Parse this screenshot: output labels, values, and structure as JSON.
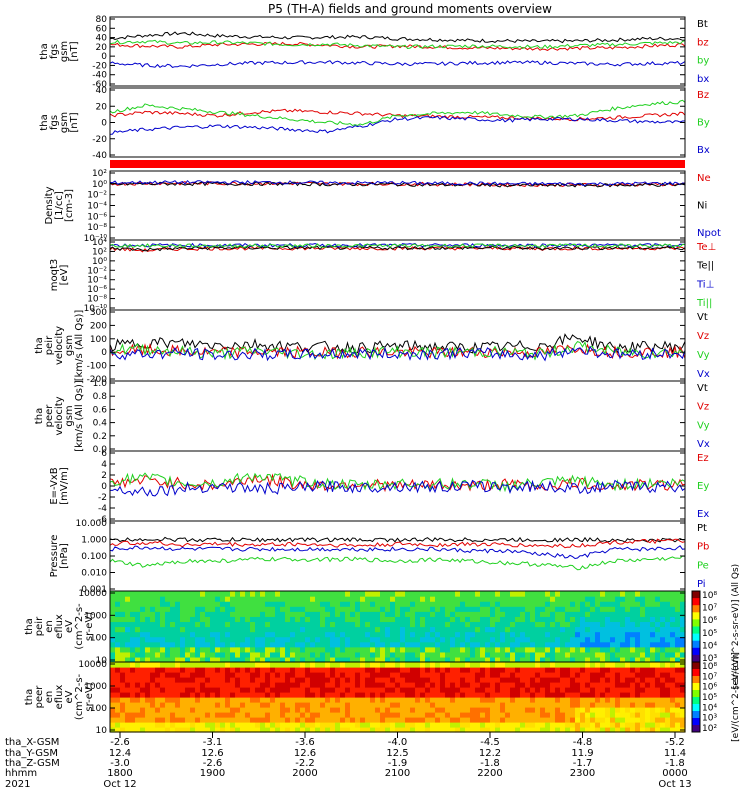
{
  "title": "P5 (TH-A) fields and ground moments overview",
  "colors": {
    "black": "#000000",
    "red": "#e00000",
    "green": "#20d020",
    "blue": "#0000cc"
  },
  "chart_data": [
    {
      "type": "line",
      "ylabel": [
        "tha",
        "fgs",
        "gsm",
        "[nT]"
      ],
      "yticks": [
        "80",
        "60",
        "40",
        "20",
        "0",
        "-20",
        "-40",
        "-60"
      ],
      "ylim": [
        -65,
        85
      ],
      "legend": [
        "Bt",
        "bz",
        "by",
        "bx"
      ],
      "series": [
        {
          "name": "Bt",
          "color": "black",
          "values": [
            38,
            45,
            50,
            44,
            42,
            40,
            41,
            42,
            38,
            36,
            34,
            33,
            32,
            33,
            35,
            38,
            38
          ]
        },
        {
          "name": "bz",
          "color": "red",
          "values": [
            25,
            22,
            20,
            25,
            26,
            27,
            24,
            20,
            22,
            20,
            18,
            17,
            16,
            17,
            18,
            22,
            25
          ]
        },
        {
          "name": "by",
          "color": "green",
          "values": [
            30,
            32,
            28,
            30,
            28,
            25,
            26,
            23,
            20,
            21,
            22,
            21,
            20,
            23,
            25,
            28,
            30
          ]
        },
        {
          "name": "bx",
          "color": "blue",
          "values": [
            -15,
            -20,
            -22,
            -18,
            -15,
            -14,
            -13,
            -15,
            -17,
            -17,
            -15,
            -14,
            -14,
            -16,
            -18,
            -16,
            -15
          ]
        }
      ]
    },
    {
      "type": "line",
      "ylabel": [
        "tha",
        "fgs",
        "gsm",
        "[nT]"
      ],
      "yticks": [
        "40",
        "20",
        "0",
        "-20",
        "-40"
      ],
      "ylim": [
        -55,
        45
      ],
      "legend": [
        "Bz",
        "By",
        "Bx"
      ],
      "series": [
        {
          "name": "Bz",
          "color": "red",
          "values": [
            5,
            10,
            8,
            5,
            10,
            12,
            10,
            8,
            5,
            4,
            3,
            2,
            1,
            0,
            2,
            5,
            8
          ]
        },
        {
          "name": "By",
          "color": "green",
          "values": [
            10,
            20,
            15,
            10,
            5,
            0,
            -5,
            -8,
            5,
            8,
            10,
            6,
            3,
            5,
            15,
            22,
            25
          ]
        },
        {
          "name": "Bx",
          "color": "blue",
          "values": [
            -20,
            -15,
            -12,
            -10,
            -12,
            -15,
            -18,
            -10,
            0,
            2,
            0,
            -2,
            0,
            0,
            -2,
            -4,
            -5
          ]
        }
      ]
    },
    {
      "type": "line",
      "ylabel": [
        "Density",
        "[1/cc]",
        "[cm-3]"
      ],
      "yticks": [
        "10²",
        "10⁰",
        "10⁻²",
        "10⁻⁴",
        "10⁻⁶",
        "10⁻⁸",
        "10⁻¹⁰"
      ],
      "ylim": [
        -11,
        3
      ],
      "log": true,
      "legend": [
        "Ne",
        "Ni",
        "Npot"
      ],
      "series": [
        {
          "name": "Ne",
          "color": "red",
          "values": [
            0.4,
            0.5,
            0.5,
            0.5,
            0.5,
            0.5,
            0.4,
            0.4,
            0.4,
            0.3,
            0.3,
            0.2,
            0.2,
            0.2,
            0.2,
            0.3,
            0.3
          ]
        },
        {
          "name": "Ni",
          "color": "black",
          "values": [
            0.3,
            0.4,
            0.4,
            0.4,
            0.4,
            0.4,
            0.3,
            0.3,
            0.3,
            0.2,
            0.2,
            0.1,
            0.1,
            0.1,
            0.1,
            0.2,
            0.2
          ]
        },
        {
          "name": "Npot",
          "color": "blue",
          "values": [
            0.6,
            0.7,
            0.7,
            0.7,
            0.7,
            0.7,
            0.6,
            0.6,
            0.6,
            0.5,
            0.5,
            0.4,
            0.4,
            0.4,
            0.4,
            0.5,
            0.5
          ]
        }
      ]
    },
    {
      "type": "line",
      "ylabel": [
        "moqt3",
        "[eV]"
      ],
      "yticks": [
        "10⁴",
        "10²",
        "10⁰",
        "10⁻²",
        "10⁻⁴",
        "10⁻⁶",
        "10⁻⁸",
        "10⁻¹⁰"
      ],
      "ylim": [
        -11,
        5
      ],
      "log": true,
      "legend": [
        "Te⊥",
        "Te||",
        "Ti⊥",
        "Ti||"
      ],
      "series": [
        {
          "name": "Te⊥",
          "color": "red",
          "values": [
            3.0,
            2.6,
            3.0,
            3.1,
            3.1,
            3.1,
            3.1,
            3.1,
            3.1,
            3.1,
            3.1,
            3.1,
            3.0,
            3.1,
            3.1,
            3.1,
            3.1
          ]
        },
        {
          "name": "Te||",
          "color": "black",
          "values": [
            3.1,
            2.8,
            3.1,
            3.2,
            3.2,
            3.2,
            3.2,
            3.2,
            3.2,
            3.2,
            3.2,
            3.2,
            3.1,
            3.2,
            3.2,
            3.2,
            3.2
          ]
        },
        {
          "name": "Ti⊥",
          "color": "blue",
          "values": [
            3.8,
            3.8,
            3.8,
            3.8,
            3.8,
            3.8,
            3.8,
            3.8,
            3.8,
            3.8,
            3.8,
            3.8,
            3.8,
            3.8,
            3.8,
            3.8,
            3.8
          ]
        },
        {
          "name": "Ti||",
          "color": "green",
          "values": [
            3.7,
            3.7,
            3.7,
            3.7,
            3.7,
            3.7,
            3.7,
            3.7,
            3.7,
            3.7,
            3.7,
            3.7,
            3.7,
            3.7,
            3.7,
            3.7,
            3.7
          ]
        }
      ]
    },
    {
      "type": "line",
      "ylabel": [
        "tha",
        "peir",
        "velocity",
        "gsm",
        "[km/s (All Qs)]"
      ],
      "yticks": [
        "300",
        "200",
        "100",
        "0",
        "-100",
        "-200"
      ],
      "ylim": [
        -210,
        320
      ],
      "legend": [
        "Vt",
        "Vz",
        "Vy",
        "Vx"
      ],
      "series": [
        {
          "name": "Vt",
          "color": "black",
          "values": [
            50,
            80,
            70,
            60,
            65,
            50,
            45,
            40,
            50,
            45,
            40,
            45,
            55,
            120,
            40,
            45,
            50
          ]
        },
        {
          "name": "Vz",
          "color": "red",
          "values": [
            10,
            20,
            10,
            0,
            10,
            5,
            0,
            10,
            5,
            0,
            5,
            10,
            0,
            40,
            5,
            10,
            0
          ]
        },
        {
          "name": "Vy",
          "color": "green",
          "values": [
            20,
            30,
            10,
            -10,
            15,
            0,
            -10,
            5,
            10,
            0,
            10,
            5,
            -10,
            50,
            10,
            0,
            10
          ]
        },
        {
          "name": "Vx",
          "color": "blue",
          "values": [
            -5,
            -10,
            0,
            -20,
            -10,
            -15,
            -10,
            -5,
            -10,
            -5,
            0,
            -10,
            -20,
            30,
            -10,
            -5,
            0
          ]
        }
      ]
    },
    {
      "type": "line",
      "ylabel": [
        "tha",
        "peer",
        "velocity",
        "gsm",
        "[km/s (All Qs)]"
      ],
      "yticks": [
        "1.0",
        "0.8",
        "0.6",
        "0.4",
        "0.2",
        "0.0"
      ],
      "ylim": [
        0,
        1.05
      ],
      "legend": [
        "Vt",
        "Vz",
        "Vy",
        "Vx"
      ],
      "series": []
    },
    {
      "type": "line",
      "ylabel": [
        "E=-VxB",
        "[mV/m]"
      ],
      "yticks": [
        "6",
        "4",
        "2",
        "0",
        "-2",
        "-4",
        "-6"
      ],
      "ylim": [
        -6.5,
        6.5
      ],
      "legend": [
        "Ez",
        "Ey",
        "Ex"
      ],
      "series": [
        {
          "name": "Ez",
          "color": "red",
          "values": [
            0.5,
            1,
            0.5,
            0,
            1.5,
            0.5,
            0,
            0.5,
            0,
            0.2,
            0,
            0.3,
            0,
            0.5,
            0,
            0.2,
            0.3
          ]
        },
        {
          "name": "Ey",
          "color": "green",
          "values": [
            1,
            1.5,
            0.5,
            0.5,
            2,
            1,
            0.5,
            0,
            0.5,
            0.3,
            0.5,
            0,
            0.5,
            1,
            0.2,
            0.5,
            0.5
          ]
        },
        {
          "name": "Ex",
          "color": "blue",
          "values": [
            -0.5,
            -1,
            -0.5,
            0,
            -0.5,
            -0.5,
            0,
            -0.3,
            0,
            -0.2,
            0,
            -0.2,
            0,
            -0.5,
            0,
            -0.2,
            0
          ]
        }
      ]
    },
    {
      "type": "line",
      "ylabel": [
        "Pressure",
        "[nPa]"
      ],
      "yticks": [
        "10.000",
        "1.000",
        "0.100",
        "0.010",
        "0.001"
      ],
      "ylim": [
        -3.05,
        1.05
      ],
      "log": true,
      "legend": [
        "Pt",
        "Pb",
        "Pe",
        "Pi"
      ],
      "series": [
        {
          "name": "Pt",
          "color": "black",
          "values": [
            -0.1,
            0,
            -0.05,
            -0.05,
            -0.05,
            -0.05,
            -0.05,
            -0.05,
            -0.05,
            -0.05,
            -0.05,
            -0.05,
            -0.05,
            -0.05,
            -0.05,
            -0.1,
            -0.05
          ]
        },
        {
          "name": "Pb",
          "color": "red",
          "values": [
            -0.3,
            -0.2,
            -0.35,
            -0.3,
            -0.35,
            -0.3,
            -0.35,
            -0.4,
            -0.3,
            -0.35,
            -0.3,
            -0.35,
            -0.4,
            -0.4,
            -0.2,
            -0.15,
            -0.1
          ]
        },
        {
          "name": "Pe",
          "color": "green",
          "values": [
            -1.3,
            -1.6,
            -1.3,
            -1.3,
            -1.2,
            -1.2,
            -1.2,
            -1.2,
            -1.3,
            -1.2,
            -1.3,
            -1.4,
            -1.5,
            -1.7,
            -1.3,
            -1.2,
            -1.1
          ]
        },
        {
          "name": "Pi",
          "color": "blue",
          "values": [
            -0.6,
            -0.5,
            -0.6,
            -0.6,
            -0.6,
            -0.6,
            -0.6,
            -0.6,
            -0.6,
            -0.6,
            -0.7,
            -0.7,
            -0.9,
            -1.1,
            -0.6,
            -0.6,
            -0.5
          ]
        }
      ]
    },
    {
      "type": "heatmap",
      "ylabel": [
        "tha",
        "peir",
        "en",
        "eflux",
        "eV",
        "(cm^2-s-",
        "sr-eV)"
      ],
      "yticks": [
        "10000",
        "1000",
        "100",
        "10"
      ],
      "ylim": [
        5,
        30000
      ],
      "log": true,
      "colorbar": {
        "label": "[eV/(cm^2-s-sr-eV)] (All Qs)",
        "ticks": [
          "10⁸",
          "10⁷",
          "10⁶",
          "10⁵",
          "10⁴",
          "10³"
        ]
      }
    },
    {
      "type": "heatmap",
      "ylabel": [
        "tha",
        "peer",
        "en",
        "eflux",
        "eV",
        "(cm^2-s-",
        "sr-eV)"
      ],
      "yticks": [
        "10000",
        "1000",
        "100",
        "10"
      ],
      "ylim": [
        5,
        30000
      ],
      "log": true,
      "colorbar": {
        "label": "[eV/(cm^2-s-sr-eV)]",
        "ticks": [
          "10⁸",
          "10⁷",
          "10⁶",
          "10⁵",
          "10⁴",
          "10³",
          "10²"
        ]
      }
    }
  ],
  "xaxis": {
    "row_labels": [
      "tha_X-GSM",
      "tha_Y-GSM",
      "tha_Z-GSM",
      "hhmm",
      "2021"
    ],
    "ticks": [
      {
        "x": "-2.6",
        "y": "12.4",
        "z": "-3.0",
        "hhmm": "1800",
        "date": "Oct 12"
      },
      {
        "x": "-3.1",
        "y": "12.6",
        "z": "-2.6",
        "hhmm": "1900",
        "date": ""
      },
      {
        "x": "-3.6",
        "y": "12.6",
        "z": "-2.2",
        "hhmm": "2000",
        "date": ""
      },
      {
        "x": "-4.0",
        "y": "12.5",
        "z": "-1.9",
        "hhmm": "2100",
        "date": ""
      },
      {
        "x": "-4.5",
        "y": "12.2",
        "z": "-1.8",
        "hhmm": "2200",
        "date": ""
      },
      {
        "x": "-4.8",
        "y": "11.9",
        "z": "-1.7",
        "hhmm": "2300",
        "date": ""
      },
      {
        "x": "-5.2",
        "y": "11.4",
        "z": "-1.8",
        "hhmm": "0000",
        "date": "Oct 13"
      }
    ]
  }
}
